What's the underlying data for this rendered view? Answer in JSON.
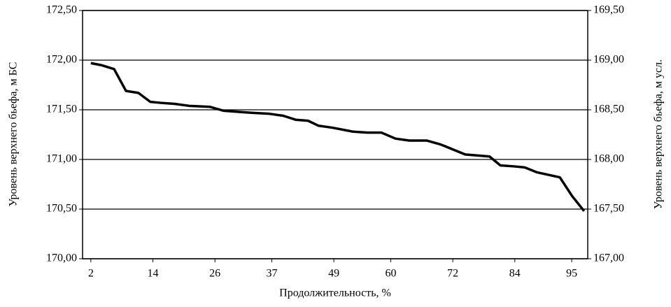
{
  "chart_data": {
    "type": "line",
    "x_label": "Продолжительность, %",
    "y_label": "Уровень верхнего бьефа, м БС",
    "y2_label": "Уровень верхнего бьефа, м  усл.",
    "x": [
      2,
      4,
      6.5,
      8.8,
      11.2,
      13.5,
      15.5,
      18.2,
      21,
      25,
      27.7,
      30.4,
      33,
      36.5,
      39.2,
      41.6,
      44,
      46,
      48.7,
      52.7,
      55.5,
      58.2,
      60.9,
      63.6,
      67,
      69.7,
      74.4,
      79.1,
      81.2,
      83.9,
      85.9,
      88.3,
      92.7,
      95.1,
      97.4
    ],
    "series": [
      {
        "color": "#000000",
        "values": [
          171.97,
          171.95,
          171.91,
          171.69,
          171.67,
          171.58,
          171.57,
          171.56,
          171.54,
          171.53,
          171.49,
          171.48,
          171.47,
          171.46,
          171.44,
          171.4,
          171.39,
          171.34,
          171.32,
          171.28,
          171.27,
          171.27,
          171.21,
          171.19,
          171.19,
          171.15,
          171.05,
          171.03,
          170.94,
          170.93,
          170.92,
          170.87,
          170.82,
          170.63,
          170.48
        ]
      }
    ],
    "xlim": [
      0.4,
      98.1
    ],
    "xticks": [
      2,
      14,
      26,
      37,
      49,
      60,
      72,
      84,
      95
    ],
    "ylim": [
      170,
      172.5
    ],
    "yticks": [
      {
        "value": 170,
        "label": "170,00"
      },
      {
        "value": 170.5,
        "label": "170,50"
      },
      {
        "value": 171,
        "label": "171,00"
      },
      {
        "value": 171.5,
        "label": "171,50"
      },
      {
        "value": 172,
        "label": "172,00"
      },
      {
        "value": 172.5,
        "label": "172,50"
      }
    ],
    "y2lim": [
      167,
      169.5
    ],
    "y2ticks": [
      {
        "value": 167,
        "label": "167,00"
      },
      {
        "value": 167.5,
        "label": "167,50"
      },
      {
        "value": 168,
        "label": "168,00"
      },
      {
        "value": 168.5,
        "label": "168,50"
      },
      {
        "value": 169,
        "label": "169,00"
      },
      {
        "value": 169.5,
        "label": "169,50"
      }
    ],
    "grid": true
  }
}
